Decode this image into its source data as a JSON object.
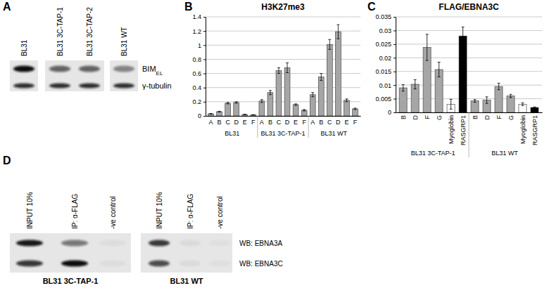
{
  "panel_labels": [
    "A",
    "B",
    "C",
    "D"
  ],
  "blot_a": {
    "lanes": [
      "BL31",
      "BL31 3C-TAP-1",
      "BL31 3C-TAP-2",
      "BL31 WT"
    ],
    "rows": [
      {
        "text": "BIM",
        "sub": "EL"
      },
      {
        "text": "γ-tubulin"
      }
    ]
  },
  "chart_data": [
    {
      "type": "bar",
      "title": "H3K27me3",
      "ylim": [
        0,
        1.4
      ],
      "yticks": [
        0,
        0.2,
        0.4,
        0.6,
        0.8,
        1,
        1.2,
        1.4
      ],
      "grid": true,
      "color": "#a6a6a6",
      "groups": [
        {
          "name": "BL31",
          "categories": [
            "A",
            "B",
            "C",
            "D",
            "E",
            "F"
          ],
          "values": [
            0.03,
            0.06,
            0.18,
            0.19,
            0.02,
            0.015
          ],
          "errors": [
            0.004,
            0.006,
            0.01,
            0.01,
            0.003,
            0.003
          ]
        },
        {
          "name": "BL31 3C-TAP-1",
          "categories": [
            "A",
            "B",
            "C",
            "D",
            "E",
            "F"
          ],
          "values": [
            0.21,
            0.33,
            0.64,
            0.68,
            0.16,
            0.08
          ],
          "errors": [
            0.02,
            0.03,
            0.04,
            0.07,
            0.01,
            0.01
          ]
        },
        {
          "name": "BL31 WT",
          "categories": [
            "A",
            "B",
            "C",
            "D",
            "E",
            "F"
          ],
          "values": [
            0.3,
            0.55,
            1.01,
            1.19,
            0.22,
            0.1
          ],
          "errors": [
            0.03,
            0.05,
            0.07,
            0.1,
            0.02,
            0.01
          ]
        }
      ]
    },
    {
      "type": "bar",
      "title": "FLAG/EBNA3C",
      "ylim": [
        0,
        0.035
      ],
      "yticks": [
        0,
        0.005,
        0.01,
        0.015,
        0.02,
        0.025,
        0.03,
        0.035
      ],
      "grid": true,
      "groups": [
        {
          "name": "BL31 3C-TAP-1",
          "categories": [
            "B",
            "D",
            "F",
            "G",
            "Myoglobin",
            "RASGRP1"
          ],
          "values": [
            0.009,
            0.0103,
            0.0238,
            0.0157,
            0.003,
            0.028
          ],
          "errors": [
            0.0012,
            0.0017,
            0.0048,
            0.0027,
            0.0018,
            0.0033
          ],
          "colors": [
            "#a6a6a6",
            "#a6a6a6",
            "#a6a6a6",
            "#a6a6a6",
            "#ffffff",
            "#000000"
          ]
        },
        {
          "name": "BL31 WT",
          "categories": [
            "B",
            "D",
            "F",
            "G",
            "Myoglobin",
            "RASGRP1"
          ],
          "values": [
            0.0042,
            0.0045,
            0.0095,
            0.006,
            0.003,
            0.0018
          ],
          "errors": [
            0.0005,
            0.0012,
            0.0012,
            0.0006,
            0.0005,
            0.0002
          ],
          "colors": [
            "#a6a6a6",
            "#a6a6a6",
            "#a6a6a6",
            "#a6a6a6",
            "#ffffff",
            "#000000"
          ]
        }
      ]
    }
  ],
  "blot_d": {
    "blots": [
      {
        "name": "BL31 3C-TAP-1",
        "lanes": [
          "INPUT 10%",
          "IP: α-FLAG",
          "-ve control"
        ]
      },
      {
        "name": "BL31 WT",
        "lanes": [
          "INPUT 10%",
          "IP: α-FLAG",
          "-ve control"
        ]
      }
    ],
    "rows": [
      "WB: EBNA3A",
      "WB: EBNA3C"
    ]
  }
}
